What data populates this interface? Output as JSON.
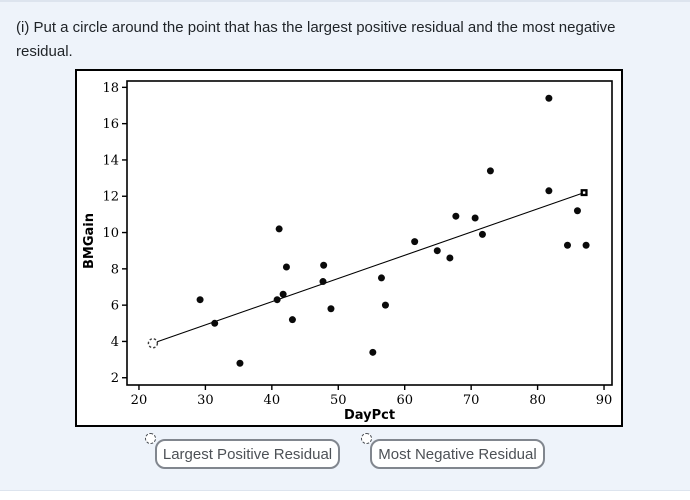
{
  "question": {
    "text": "(i) Put a circle around the point that has the largest positive residual and the most negative residual."
  },
  "chart_data": {
    "type": "scatter",
    "title": "",
    "xlabel": "DayPct",
    "ylabel": "BMGain",
    "xlim": [
      18.2,
      91.2
    ],
    "ylim": [
      1.6,
      18.35
    ],
    "x_ticks": [
      20,
      30,
      40,
      50,
      60,
      70,
      80,
      90
    ],
    "y_ticks": [
      2,
      4,
      6,
      8,
      10,
      12,
      14,
      16,
      18
    ],
    "grid": false,
    "legend": "none",
    "point_color": "#0a0a0a",
    "points": [
      [
        29.2,
        6.3
      ],
      [
        31.4,
        5.0
      ],
      [
        35.2,
        2.8
      ],
      [
        40.8,
        6.3
      ],
      [
        41.1,
        10.2
      ],
      [
        41.7,
        6.6
      ],
      [
        42.2,
        8.1
      ],
      [
        43.1,
        5.2
      ],
      [
        47.7,
        7.3
      ],
      [
        47.8,
        8.2
      ],
      [
        48.9,
        5.8
      ],
      [
        55.2,
        3.4
      ],
      [
        56.5,
        7.5
      ],
      [
        57.1,
        6.0
      ],
      [
        61.5,
        9.5
      ],
      [
        64.9,
        9.0
      ],
      [
        66.8,
        8.6
      ],
      [
        67.7,
        10.9
      ],
      [
        70.6,
        10.8
      ],
      [
        71.7,
        9.9
      ],
      [
        72.9,
        13.4
      ],
      [
        81.7,
        12.3
      ],
      [
        81.7,
        17.4
      ],
      [
        84.5,
        9.3
      ],
      [
        86.0,
        11.2
      ],
      [
        87.3,
        9.3
      ]
    ],
    "fit_line": {
      "x1": 22.1,
      "y1": 3.9,
      "x2": 87.0,
      "y2": 12.2,
      "start_marker": "dashed-circle",
      "end_marker": "square"
    }
  },
  "controls": [
    {
      "label": "Largest Positive Residual"
    },
    {
      "label": "Most Negative Residual"
    }
  ]
}
